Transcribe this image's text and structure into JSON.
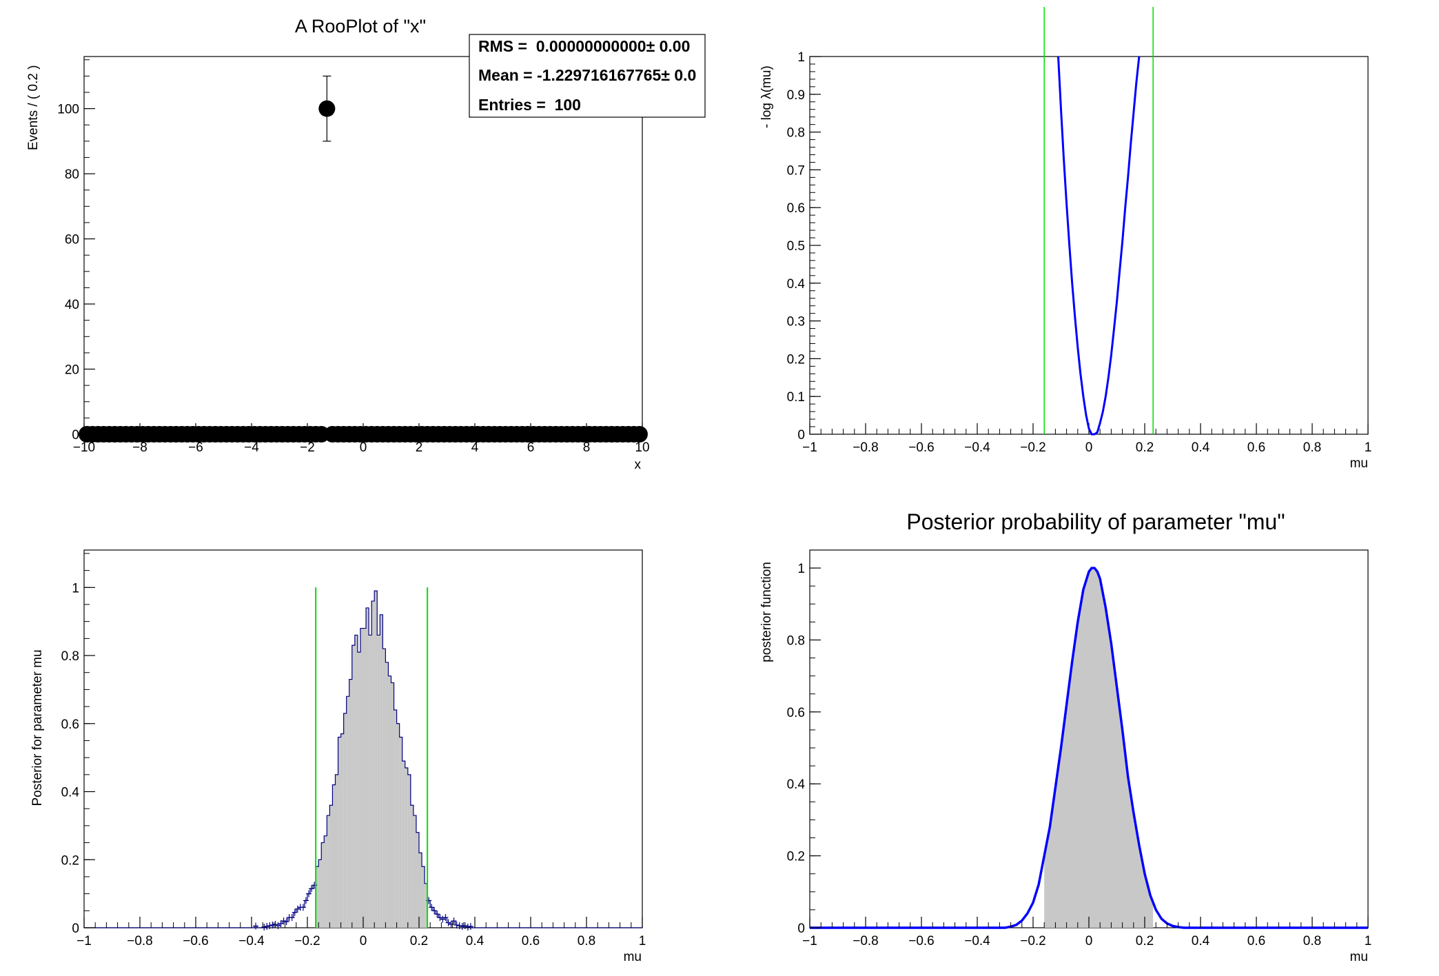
{
  "chart_data": [
    {
      "type": "scatter",
      "title": "A RooPlot of \"x\"",
      "xlabel": "x",
      "ylabel": "Events / ( 0.2 )",
      "xlim": [
        -10,
        10
      ],
      "ylim": [
        0,
        116
      ],
      "xticks": [
        -10,
        -8,
        -6,
        -4,
        -2,
        0,
        2,
        4,
        6,
        8,
        10
      ],
      "xtick_labels": [
        "−10",
        "−8",
        "−6",
        "−4",
        "−2",
        "0",
        "2",
        "4",
        "6",
        "8",
        "10"
      ],
      "yticks": [
        0,
        20,
        40,
        60,
        80,
        100
      ],
      "ytick_labels": [
        "0",
        "20",
        "40",
        "60",
        "80",
        "100"
      ],
      "bin_width": 0.2,
      "peak": {
        "x": -1.3,
        "y": 100,
        "err_low": 90,
        "err_high": 110
      },
      "baseline_value": 0,
      "stats": {
        "lines": [
          "RMS =  0.00000000000± 0.00",
          "Mean = -1.229716167765± 0.0",
          "Entries =  100"
        ]
      },
      "colors": {
        "markers": "#000000"
      }
    },
    {
      "type": "line",
      "title": "",
      "xlabel": "mu",
      "ylabel": "- log λ(mu)",
      "xlim": [
        -1,
        1
      ],
      "ylim": [
        0,
        1
      ],
      "xticks": [
        -1,
        -0.8,
        -0.6,
        -0.4,
        -0.2,
        0,
        0.2,
        0.4,
        0.6,
        0.8,
        1
      ],
      "xtick_labels": [
        "−1",
        "−0.8",
        "−0.6",
        "−0.4",
        "−0.2",
        "0",
        "0.2",
        "0.4",
        "0.6",
        "0.8",
        "1"
      ],
      "yticks": [
        0,
        0.1,
        0.2,
        0.3,
        0.4,
        0.5,
        0.6,
        0.7,
        0.8,
        0.9,
        1
      ],
      "ytick_labels": [
        "0",
        "0.1",
        "0.2",
        "0.3",
        "0.4",
        "0.5",
        "0.6",
        "0.7",
        "0.8",
        "0.9",
        "1"
      ],
      "series": [
        {
          "x": [
            -0.11,
            -0.1,
            -0.09,
            -0.08,
            -0.07,
            -0.06,
            -0.05,
            -0.04,
            -0.03,
            -0.02,
            -0.01,
            0.0,
            0.01,
            0.02,
            0.03,
            0.04,
            0.05,
            0.06,
            0.07,
            0.08,
            0.09,
            0.1,
            0.11,
            0.12,
            0.13,
            0.14,
            0.15,
            0.16,
            0.17,
            0.18
          ],
          "y": [
            1.0,
            0.86,
            0.73,
            0.61,
            0.5,
            0.4,
            0.31,
            0.23,
            0.16,
            0.1,
            0.05,
            0.015,
            0.0,
            0.0,
            0.005,
            0.03,
            0.06,
            0.1,
            0.15,
            0.21,
            0.28,
            0.35,
            0.43,
            0.51,
            0.6,
            0.68,
            0.77,
            0.85,
            0.93,
            1.0
          ]
        }
      ],
      "vertical_lines": [
        -0.16,
        0.23
      ],
      "colors": {
        "curve": "#0000ff",
        "limits": "#00dd00"
      }
    },
    {
      "type": "bar",
      "title": "",
      "xlabel": "mu",
      "ylabel": "Posterior for parameter mu",
      "xlim": [
        -1,
        1
      ],
      "ylim": [
        0,
        1.11
      ],
      "xticks": [
        -1,
        -0.8,
        -0.6,
        -0.4,
        -0.2,
        0,
        0.2,
        0.4,
        0.6,
        0.8,
        1
      ],
      "xtick_labels": [
        "−1",
        "−0.8",
        "−0.6",
        "−0.4",
        "−0.2",
        "0",
        "0.2",
        "0.4",
        "0.6",
        "0.8",
        "1"
      ],
      "yticks": [
        0,
        0.2,
        0.4,
        0.6,
        0.8,
        1
      ],
      "ytick_labels": [
        "0",
        "0.2",
        "0.4",
        "0.6",
        "0.8",
        "1"
      ],
      "bins": {
        "x": [
          -0.4,
          -0.39,
          -0.38,
          -0.37,
          -0.36,
          -0.35,
          -0.34,
          -0.33,
          -0.32,
          -0.31,
          -0.3,
          -0.29,
          -0.28,
          -0.27,
          -0.26,
          -0.25,
          -0.24,
          -0.23,
          -0.22,
          -0.21,
          -0.2,
          -0.19,
          -0.18,
          -0.17,
          -0.16,
          -0.15,
          -0.14,
          -0.13,
          -0.12,
          -0.11,
          -0.1,
          -0.09,
          -0.08,
          -0.07,
          -0.06,
          -0.05,
          -0.04,
          -0.03,
          -0.02,
          -0.01,
          0.0,
          0.01,
          0.02,
          0.03,
          0.04,
          0.05,
          0.06,
          0.07,
          0.08,
          0.09,
          0.1,
          0.11,
          0.12,
          0.13,
          0.14,
          0.15,
          0.16,
          0.17,
          0.18,
          0.19,
          0.2,
          0.21,
          0.22,
          0.23,
          0.24,
          0.25,
          0.26,
          0.27,
          0.28,
          0.29,
          0.3,
          0.31,
          0.32,
          0.33,
          0.34,
          0.35,
          0.36,
          0.37,
          0.38,
          0.39
        ],
        "y": [
          0.0,
          0.005,
          0.0,
          0.0,
          0.002,
          0.004,
          0.006,
          0.008,
          0.01,
          0.006,
          0.012,
          0.02,
          0.018,
          0.03,
          0.03,
          0.045,
          0.055,
          0.06,
          0.06,
          0.08,
          0.1,
          0.115,
          0.125,
          0.18,
          0.2,
          0.25,
          0.27,
          0.33,
          0.36,
          0.42,
          0.45,
          0.56,
          0.57,
          0.63,
          0.68,
          0.73,
          0.83,
          0.86,
          0.81,
          0.88,
          0.88,
          0.94,
          0.86,
          0.96,
          0.99,
          0.86,
          0.92,
          0.82,
          0.78,
          0.74,
          0.72,
          0.64,
          0.6,
          0.56,
          0.49,
          0.47,
          0.45,
          0.36,
          0.33,
          0.28,
          0.22,
          0.18,
          0.13,
          0.08,
          0.06,
          0.05,
          0.04,
          0.03,
          0.025,
          0.03,
          0.015,
          0.01,
          0.02,
          0.008,
          0.006,
          0.004,
          0.006,
          0.002,
          0.004,
          0.0
        ]
      },
      "vertical_lines": [
        -0.17,
        0.23
      ],
      "vertical_line_height": 1.0,
      "colors": {
        "histogram": "#000080",
        "fill": "#c8c8c8",
        "limits": "#00dd00"
      }
    },
    {
      "type": "area",
      "title": "Posterior probability of parameter \"mu\"",
      "xlabel": "mu",
      "ylabel": "posterior function",
      "xlim": [
        -1,
        1
      ],
      "ylim": [
        0,
        1.05
      ],
      "xticks": [
        -1,
        -0.8,
        -0.6,
        -0.4,
        -0.2,
        0,
        0.2,
        0.4,
        0.6,
        0.8,
        1
      ],
      "xtick_labels": [
        "−1",
        "−0.8",
        "−0.6",
        "−0.4",
        "−0.2",
        "0",
        "0.2",
        "0.4",
        "0.6",
        "0.8",
        "1"
      ],
      "yticks": [
        0,
        0.2,
        0.4,
        0.6,
        0.8,
        1
      ],
      "ytick_labels": [
        "0",
        "0.2",
        "0.4",
        "0.6",
        "0.8",
        "1"
      ],
      "series": [
        {
          "x": [
            -1.0,
            -0.3,
            -0.28,
            -0.26,
            -0.24,
            -0.22,
            -0.2,
            -0.18,
            -0.16,
            -0.14,
            -0.12,
            -0.1,
            -0.08,
            -0.06,
            -0.04,
            -0.02,
            0.0,
            0.01,
            0.02,
            0.03,
            0.04,
            0.06,
            0.08,
            0.1,
            0.12,
            0.14,
            0.16,
            0.18,
            0.2,
            0.22,
            0.24,
            0.26,
            0.28,
            0.3,
            0.32,
            0.34,
            1.0
          ],
          "y": [
            0.0,
            0.0,
            0.003,
            0.008,
            0.02,
            0.04,
            0.07,
            0.12,
            0.2,
            0.28,
            0.39,
            0.5,
            0.62,
            0.74,
            0.85,
            0.94,
            0.99,
            1.0,
            1.0,
            0.99,
            0.97,
            0.89,
            0.79,
            0.67,
            0.55,
            0.42,
            0.32,
            0.23,
            0.15,
            0.09,
            0.05,
            0.025,
            0.012,
            0.005,
            0.002,
            0.0,
            0.0
          ]
        }
      ],
      "shaded_interval": [
        -0.16,
        0.23
      ],
      "colors": {
        "curve": "#0000ff",
        "fill": "#c8c8c8"
      }
    }
  ]
}
